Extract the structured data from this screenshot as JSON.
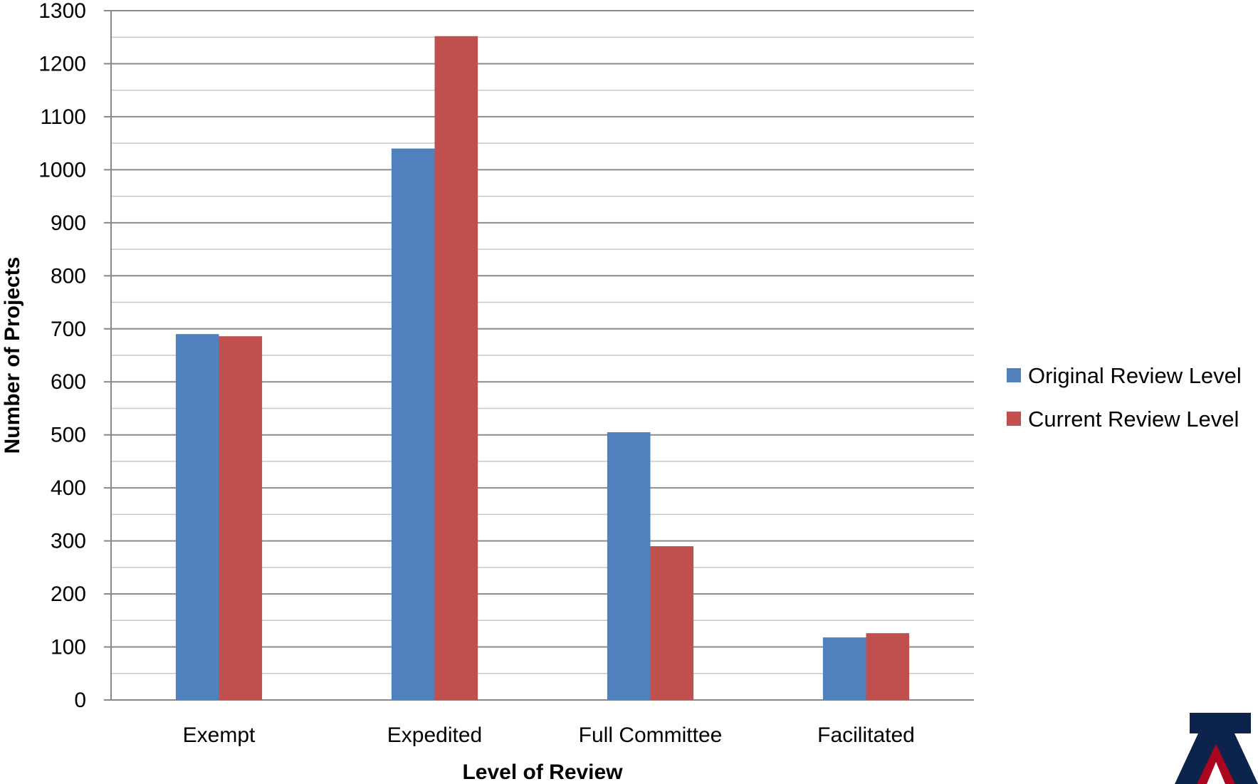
{
  "chart_data": {
    "type": "bar",
    "title": "",
    "xlabel": "Level of Review",
    "ylabel": "Number of Projects",
    "categories": [
      "Exempt",
      "Expedited",
      "Full Committee",
      "Facilitated"
    ],
    "series": [
      {
        "name": "Original Review Level",
        "color": "#4F81BD",
        "values": [
          690,
          1040,
          505,
          118
        ]
      },
      {
        "name": "Current Review Level",
        "color": "#C0504D",
        "values": [
          686,
          1252,
          290,
          126
        ]
      }
    ],
    "ylim": [
      0,
      1300
    ],
    "major_tick_step": 100,
    "minor_tick_step": 50,
    "grid": true,
    "legend_position": "right"
  },
  "logo": {
    "name": "university-logo-icon",
    "colors": [
      "#0C234B",
      "#AB0520"
    ]
  }
}
